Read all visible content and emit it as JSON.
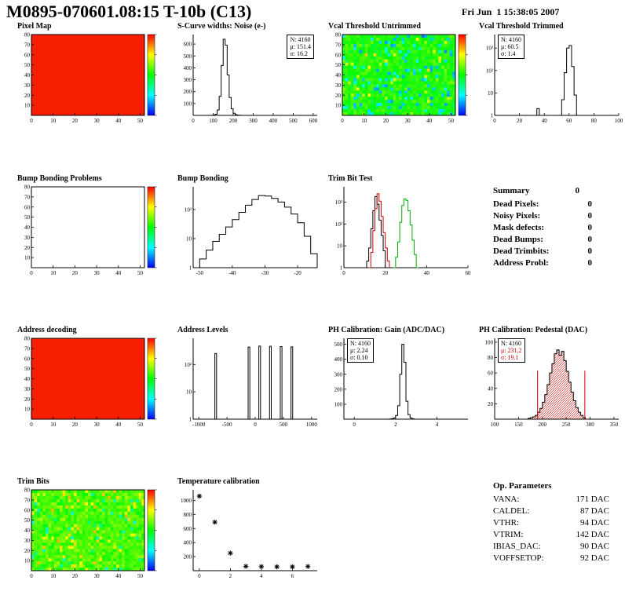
{
  "header": {
    "title": "M0895-070601.08:15 T-10b (C13)",
    "datetime": "Fri Jun  1 15:38:05 2007"
  },
  "summary": {
    "heading": "Summary",
    "value": "0",
    "rows": [
      {
        "label": "Dead Pixels:",
        "value": "0"
      },
      {
        "label": "Noisy Pixels:",
        "value": "0"
      },
      {
        "label": "Mask defects:",
        "value": "0"
      },
      {
        "label": "Dead Bumps:",
        "value": "0"
      },
      {
        "label": "Dead Trimbits:",
        "value": "0"
      },
      {
        "label": "Address Probl:",
        "value": "0"
      }
    ]
  },
  "op_parameters": {
    "heading": "Op. Parameters",
    "rows": [
      {
        "label": "VANA:",
        "value": "171 DAC"
      },
      {
        "label": "CALDEL:",
        "value": "87 DAC"
      },
      {
        "label": "VTHR:",
        "value": "94 DAC"
      },
      {
        "label": "VTRIM:",
        "value": "142 DAC"
      },
      {
        "label": "IBIAS_DAC:",
        "value": "90 DAC"
      },
      {
        "label": "VOFFSETOP:",
        "value": "92 DAC"
      }
    ]
  },
  "colors": {
    "uniform_map_red": "#f61d00",
    "hist_line": "#000000",
    "red_series": "#cc0000",
    "green_series": "#00aa00",
    "pedestal_fill": "#dd0000"
  },
  "chart_data": [
    {
      "key": "pixel_map",
      "type": "heatmap",
      "variant": "uniform",
      "color": "#f61d00",
      "title": "Pixel Map",
      "xlim": [
        0,
        52
      ],
      "ylim": [
        0,
        80
      ],
      "xticks": [
        0,
        10,
        20,
        30,
        40,
        50
      ],
      "yticks": [
        10,
        20,
        30,
        40,
        50,
        60,
        70,
        80
      ],
      "colorbar": true
    },
    {
      "key": "scurve_noise",
      "type": "hist",
      "title": "S-Curve widths: Noise (e-)",
      "xlim": [
        0,
        620
      ],
      "xticks": [
        0,
        100,
        200,
        300,
        400,
        500,
        600
      ],
      "ylim": [
        0,
        680
      ],
      "yticks": [
        100,
        200,
        300,
        400,
        500,
        600
      ],
      "bins": {
        "start": 90,
        "width": 10,
        "values": [
          1,
          3,
          10,
          45,
          160,
          420,
          640,
          590,
          340,
          150,
          55,
          18,
          6,
          2,
          1
        ]
      },
      "stats": {
        "N": "4160",
        "mu": "151.4",
        "sigma": "16.2"
      },
      "stats_pos": "right"
    },
    {
      "key": "vcal_untrimmed",
      "type": "heatmap",
      "variant": "noise-cool",
      "seed": 7,
      "title": "Vcal Threshold Untrimmed",
      "xlim": [
        0,
        52
      ],
      "ylim": [
        0,
        80
      ],
      "xticks": [
        0,
        10,
        20,
        30,
        40,
        50
      ],
      "yticks": [
        10,
        20,
        30,
        40,
        50,
        60,
        70,
        80
      ],
      "colorbar": true
    },
    {
      "key": "vcal_trimmed",
      "type": "hist",
      "logy": true,
      "title": "Vcal Threshold Trimmed",
      "xlim": [
        0,
        100
      ],
      "xticks": [
        0,
        20,
        40,
        60,
        80,
        100
      ],
      "ylim": [
        1,
        4000
      ],
      "yticks": [
        1,
        10,
        100,
        1000
      ],
      "ytick_labels": [
        "1",
        "10",
        "10²",
        "10³"
      ],
      "bins": {
        "start": 30,
        "width": 2,
        "values": [
          0,
          0,
          2,
          0,
          0,
          0,
          0,
          0,
          0,
          0,
          0,
          0,
          5,
          80,
          1000,
          1300,
          150,
          8
        ]
      },
      "stats": {
        "N": "4160",
        "mu": "60.5",
        "sigma": "1.4"
      },
      "stats_pos": "left"
    },
    {
      "key": "bump_problems",
      "type": "heatmap",
      "variant": "empty",
      "title": "Bump Bonding Problems",
      "xlim": [
        0,
        52
      ],
      "ylim": [
        0,
        80
      ],
      "xticks": [
        0,
        10,
        20,
        30,
        40,
        50
      ],
      "yticks": [
        10,
        20,
        30,
        40,
        50,
        60,
        70,
        80
      ],
      "colorbar": true
    },
    {
      "key": "bump_bonding",
      "type": "hist",
      "logy": true,
      "title": "Bump Bonding",
      "xlim": [
        -52,
        -14
      ],
      "xticks": [
        -50,
        -40,
        -30,
        -20
      ],
      "ylim": [
        1,
        600
      ],
      "yticks": [
        1,
        10,
        100
      ],
      "ytick_labels": [
        "1",
        "10",
        "10²"
      ],
      "bins": {
        "start": -50,
        "width": 2,
        "values": [
          2,
          4,
          8,
          14,
          25,
          45,
          80,
          140,
          220,
          300,
          290,
          240,
          180,
          120,
          70,
          35,
          12,
          3
        ]
      }
    },
    {
      "key": "trim_bit_test",
      "type": "hist",
      "logy": true,
      "title": "Trim Bit Test",
      "xlim": [
        0,
        60
      ],
      "xticks": [
        0,
        20,
        40,
        60
      ],
      "ylim": [
        1,
        5000
      ],
      "yticks": [
        1,
        10,
        100,
        1000
      ],
      "ytick_labels": [
        "1",
        "10",
        "10²",
        "10³"
      ],
      "series": [
        {
          "color": "#000000",
          "bins": {
            "start": 10,
            "width": 1,
            "values": [
              1,
              2,
              8,
              60,
              400,
              1800,
              800,
              150,
              30,
              6,
              1
            ]
          }
        },
        {
          "color": "#cc0000",
          "bins": {
            "start": 12,
            "width": 1,
            "values": [
              1,
              5,
              50,
              500,
              2400,
              1100,
              220,
              40,
              8,
              2
            ]
          }
        },
        {
          "color": "#00aa00",
          "bins": {
            "start": 24,
            "width": 1,
            "values": [
              1,
              3,
              15,
              120,
              700,
              1400,
              1200,
              400,
              90,
              18,
              4,
              1
            ]
          }
        }
      ]
    },
    {
      "key": "address_decoding",
      "type": "heatmap",
      "variant": "uniform",
      "color": "#f61d00",
      "title": "Address decoding",
      "xlim": [
        0,
        52
      ],
      "ylim": [
        0,
        80
      ],
      "xticks": [
        0,
        10,
        20,
        30,
        40,
        50
      ],
      "yticks": [
        10,
        20,
        30,
        40,
        50,
        60,
        70,
        80
      ],
      "colorbar": true
    },
    {
      "key": "address_levels",
      "type": "spikes",
      "logy": true,
      "title": "Address Levels",
      "xlim": [
        -1100,
        1100
      ],
      "xticks": [
        -1000,
        -500,
        0,
        500,
        1000
      ],
      "ylim": [
        1,
        900
      ],
      "yticks": [
        1,
        10,
        100
      ],
      "ytick_labels": [
        "1",
        "10",
        "10²"
      ],
      "spike_width": 30,
      "spikes": [
        [
          -700,
          250
        ],
        [
          -110,
          430
        ],
        [
          80,
          470
        ],
        [
          270,
          460
        ],
        [
          460,
          450
        ],
        [
          650,
          440
        ]
      ]
    },
    {
      "key": "ph_gain",
      "type": "hist",
      "title": "PH Calibration: Gain (ADC/DAC)",
      "xlim": [
        -0.5,
        5.5
      ],
      "xticks": [
        0,
        2,
        4
      ],
      "ylim": [
        0,
        540
      ],
      "yticks": [
        100,
        200,
        300,
        400,
        500
      ],
      "bins": {
        "start": 1.7,
        "width": 0.1,
        "values": [
          1,
          3,
          8,
          25,
          90,
          300,
          500,
          380,
          120,
          30,
          8,
          2
        ]
      },
      "stats": {
        "N": "4160",
        "mu": "2.24",
        "sigma": "0.10"
      },
      "stats_pos": "left"
    },
    {
      "key": "ph_pedestal",
      "type": "hist",
      "title": "PH Calibration: Pedestal (DAC)",
      "xlim": [
        100,
        360
      ],
      "xticks": [
        100,
        150,
        200,
        250,
        300,
        350
      ],
      "ylim": [
        0,
        105
      ],
      "yticks": [
        20,
        40,
        60,
        80,
        100
      ],
      "hatch": true,
      "vlines": [
        190,
        289
      ],
      "bins": {
        "start": 170,
        "width": 5,
        "values": [
          1,
          2,
          3,
          5,
          9,
          14,
          22,
          32,
          45,
          60,
          72,
          85,
          90,
          83,
          88,
          76,
          62,
          48,
          35,
          24,
          15,
          9,
          5,
          2
        ]
      },
      "stats": {
        "N": "4160",
        "mu": "231.2",
        "sigma": "19.1"
      },
      "stats_red": true,
      "stats_pos": "left"
    },
    {
      "key": "trim_bits",
      "type": "heatmap",
      "variant": "noise-warm",
      "seed": 13,
      "title": "Trim Bits",
      "xlim": [
        0,
        52
      ],
      "ylim": [
        0,
        80
      ],
      "xticks": [
        0,
        10,
        20,
        30,
        40,
        50
      ],
      "yticks": [
        10,
        20,
        30,
        40,
        50,
        60,
        70,
        80
      ],
      "colorbar": true
    },
    {
      "key": "temp_cal",
      "type": "scatter",
      "title": "Temperature calibration",
      "xlim": [
        -0.4,
        7.6
      ],
      "xticks": [
        0,
        2,
        4,
        6
      ],
      "ylim": [
        0,
        1150
      ],
      "yticks": [
        200,
        400,
        600,
        800,
        1000
      ],
      "points": [
        [
          0,
          1060
        ],
        [
          1,
          690
        ],
        [
          2,
          250
        ],
        [
          3,
          62
        ],
        [
          4,
          58
        ],
        [
          5,
          55
        ],
        [
          6,
          55
        ],
        [
          7,
          60
        ]
      ]
    }
  ]
}
